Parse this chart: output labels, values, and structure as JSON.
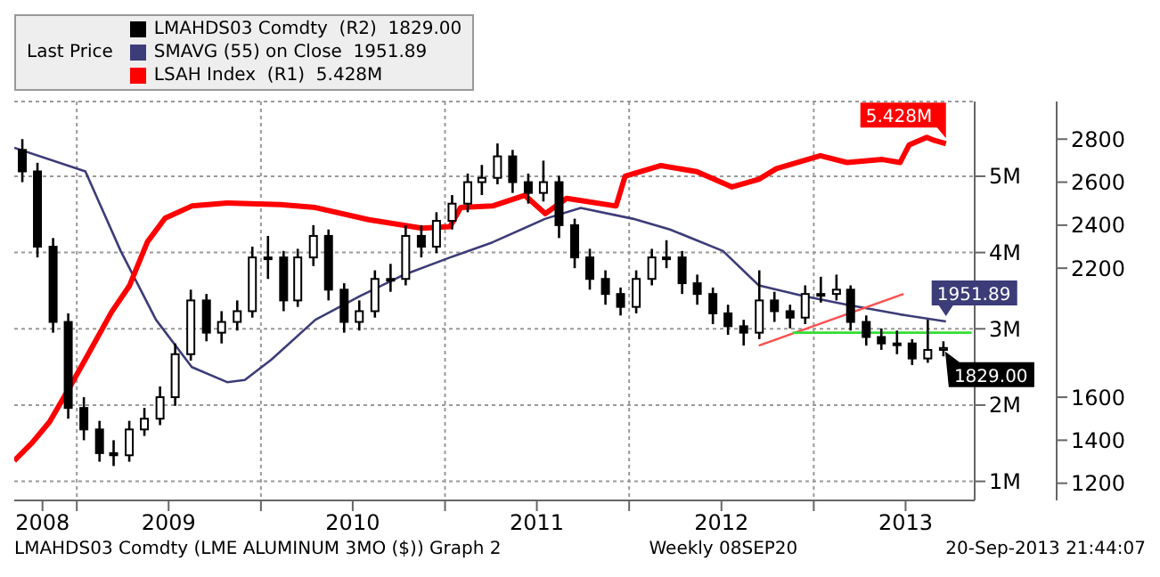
{
  "chart_data": {
    "type": "candlestick",
    "legend_title": "Last Price",
    "legend": "top left",
    "grid": true,
    "marker": "none",
    "line_style": "solid",
    "xlim": [
      "2008-08-30",
      "2013-11-16"
    ],
    "xticks": [
      {
        "value": "2008-10-25",
        "label": "2008"
      },
      {
        "value": "2009-01-01",
        "label": null
      },
      {
        "value": "2009-07-02",
        "label": "2009"
      },
      {
        "value": "2010-01-01",
        "label": null
      },
      {
        "value": "2010-07-02",
        "label": "2010"
      },
      {
        "value": "2011-01-01",
        "label": null
      },
      {
        "value": "2011-07-02",
        "label": "2011"
      },
      {
        "value": "2012-01-01",
        "label": null
      },
      {
        "value": "2012-07-02",
        "label": "2012"
      },
      {
        "value": "2013-01-01",
        "label": null
      },
      {
        "value": "2013-07-02",
        "label": "2013"
      }
    ],
    "ylim": [
      750000,
      5980000
    ],
    "yticks": [
      {
        "value": 1000000,
        "label": "1M"
      },
      {
        "value": 2000000,
        "label": "2M"
      },
      {
        "value": 3000000,
        "label": "3M"
      },
      {
        "value": 4000000,
        "label": "4M"
      },
      {
        "value": 5000000,
        "label": "5M"
      }
    ],
    "y2lim": [
      1120,
      2975
    ],
    "y2ticks": [
      1200,
      1400,
      1600,
      2200,
      2400,
      2600,
      2800
    ],
    "series": [
      {
        "name": "LMAHDS03 Comdty  (R2)",
        "axis": "y2",
        "color": "#000000",
        "x": [
          "2008-09-15",
          "2008-10-15",
          "2008-11-15",
          "2008-12-15",
          "2009-01-15",
          "2009-02-15",
          "2009-03-15",
          "2009-04-15",
          "2009-05-15",
          "2009-06-15",
          "2009-07-15",
          "2009-08-15",
          "2009-09-15",
          "2009-10-15",
          "2009-11-15",
          "2009-12-15",
          "2010-01-15",
          "2010-02-15",
          "2010-03-15",
          "2010-04-15",
          "2010-05-15",
          "2010-06-15",
          "2010-07-15",
          "2010-08-15",
          "2010-09-15",
          "2010-10-15",
          "2010-11-15",
          "2010-12-15",
          "2011-01-15",
          "2011-02-15",
          "2011-03-15",
          "2011-04-15",
          "2011-05-15",
          "2011-06-15",
          "2011-07-15",
          "2011-08-15",
          "2011-09-15",
          "2011-10-15",
          "2011-11-15",
          "2011-12-15",
          "2012-01-15",
          "2012-02-15",
          "2012-03-15",
          "2012-04-15",
          "2012-05-15",
          "2012-06-15",
          "2012-07-15",
          "2012-08-15",
          "2012-09-15",
          "2012-10-15",
          "2012-11-15",
          "2012-12-15",
          "2013-01-15",
          "2013-02-15",
          "2013-03-15",
          "2013-04-15",
          "2013-05-15",
          "2013-06-15",
          "2013-07-15",
          "2013-08-15",
          "2013-09-15"
        ],
        "ohlc": [
          [
            2750,
            2800,
            2600,
            2650
          ],
          [
            2650,
            2690,
            2250,
            2300
          ],
          [
            2300,
            2340,
            1900,
            1950
          ],
          [
            1950,
            1990,
            1500,
            1550
          ],
          [
            1550,
            1600,
            1400,
            1450
          ],
          [
            1450,
            1490,
            1300,
            1340
          ],
          [
            1340,
            1400,
            1280,
            1330
          ],
          [
            1330,
            1490,
            1300,
            1450
          ],
          [
            1450,
            1550,
            1420,
            1500
          ],
          [
            1500,
            1650,
            1470,
            1600
          ],
          [
            1600,
            1850,
            1560,
            1800
          ],
          [
            1800,
            2100,
            1770,
            2050
          ],
          [
            2050,
            2080,
            1860,
            1900
          ],
          [
            1900,
            2000,
            1850,
            1950
          ],
          [
            1950,
            2050,
            1910,
            2000
          ],
          [
            2000,
            2300,
            1970,
            2250
          ],
          [
            2250,
            2350,
            2150,
            2250
          ],
          [
            2250,
            2280,
            2000,
            2050
          ],
          [
            2050,
            2290,
            2020,
            2250
          ],
          [
            2250,
            2400,
            2210,
            2350
          ],
          [
            2350,
            2380,
            2050,
            2100
          ],
          [
            2100,
            2130,
            1900,
            1950
          ],
          [
            1950,
            2050,
            1910,
            2000
          ],
          [
            2000,
            2190,
            1970,
            2150
          ],
          [
            2150,
            2220,
            2090,
            2150
          ],
          [
            2150,
            2400,
            2120,
            2350
          ],
          [
            2350,
            2400,
            2250,
            2300
          ],
          [
            2300,
            2460,
            2270,
            2420
          ],
          [
            2420,
            2540,
            2380,
            2500
          ],
          [
            2500,
            2640,
            2460,
            2600
          ],
          [
            2600,
            2680,
            2540,
            2620
          ],
          [
            2620,
            2780,
            2590,
            2720
          ],
          [
            2720,
            2750,
            2550,
            2600
          ],
          [
            2600,
            2640,
            2500,
            2550
          ],
          [
            2550,
            2700,
            2510,
            2600
          ],
          [
            2600,
            2630,
            2340,
            2400
          ],
          [
            2400,
            2430,
            2200,
            2250
          ],
          [
            2250,
            2290,
            2100,
            2150
          ],
          [
            2150,
            2190,
            2030,
            2080
          ],
          [
            2080,
            2110,
            1980,
            2020
          ],
          [
            2020,
            2190,
            1990,
            2150
          ],
          [
            2150,
            2290,
            2120,
            2250
          ],
          [
            2250,
            2330,
            2200,
            2250
          ],
          [
            2250,
            2280,
            2080,
            2130
          ],
          [
            2130,
            2170,
            2030,
            2080
          ],
          [
            2080,
            2110,
            1940,
            1990
          ],
          [
            1990,
            2030,
            1890,
            1930
          ],
          [
            1930,
            1960,
            1840,
            1900
          ],
          [
            1900,
            2190,
            1870,
            2050
          ],
          [
            2050,
            2090,
            1950,
            2000
          ],
          [
            2000,
            2030,
            1920,
            1970
          ],
          [
            1970,
            2120,
            1940,
            2080
          ],
          [
            2080,
            2160,
            2040,
            2080
          ],
          [
            2080,
            2170,
            2050,
            2100
          ],
          [
            2100,
            2120,
            1910,
            1950
          ],
          [
            1950,
            1980,
            1840,
            1880
          ],
          [
            1880,
            1920,
            1820,
            1850
          ],
          [
            1850,
            1910,
            1800,
            1850
          ],
          [
            1850,
            1870,
            1750,
            1780
          ],
          [
            1780,
            1960,
            1760,
            1820
          ],
          [
            1820,
            1860,
            1790,
            1829
          ]
        ],
        "value_labels": [
          null,
          null,
          null,
          null,
          null,
          null,
          null,
          null,
          null,
          null,
          null,
          null,
          null,
          null,
          null,
          null,
          null,
          null,
          null,
          null,
          null,
          null,
          null,
          null,
          null,
          null,
          null,
          null,
          null,
          null,
          null,
          null,
          null,
          null,
          null,
          null,
          null,
          null,
          null,
          null,
          null,
          null,
          null,
          null,
          null,
          null,
          null,
          null,
          null,
          null,
          null,
          null,
          null,
          null,
          null,
          null,
          null,
          null,
          null,
          null,
          "1829.00"
        ]
      },
      {
        "name": "SMAVG (55) on Close",
        "type": "line",
        "axis": "y2",
        "color": "#3c3c78",
        "x": [
          "2008-08-30",
          "2009-01-18",
          "2009-03-29",
          "2009-06-07",
          "2009-08-17",
          "2009-10-26",
          "2009-11-30",
          "2010-01-22",
          "2010-04-19",
          "2010-07-16",
          "2010-10-12",
          "2011-01-11",
          "2011-04-05",
          "2011-07-19",
          "2011-09-27",
          "2012-01-08",
          "2012-03-22",
          "2012-07-05",
          "2012-09-14",
          "2012-12-12",
          "2013-03-08",
          "2013-06-21",
          "2013-09-20"
        ],
        "values": [
          2760,
          2650,
          2280,
          1960,
          1740,
          1670,
          1680,
          1775,
          1960,
          2070,
          2170,
          2250,
          2320,
          2430,
          2480,
          2430,
          2380,
          2280,
          2120,
          2070,
          2030,
          1985,
          1951.89
        ],
        "value_labels": [
          null,
          null,
          null,
          null,
          null,
          null,
          null,
          null,
          null,
          null,
          null,
          null,
          null,
          null,
          null,
          null,
          null,
          null,
          null,
          null,
          null,
          null,
          "1951.89"
        ]
      },
      {
        "name": "LSAH Index  (R1)",
        "type": "line",
        "color": "#ff0000",
        "x": [
          "2008-08-30",
          "2008-10-05",
          "2008-11-08",
          "2008-12-14",
          "2009-01-18",
          "2009-03-11",
          "2009-04-15",
          "2009-05-21",
          "2009-06-25",
          "2009-08-17",
          "2009-10-26",
          "2010-02-08",
          "2010-04-19",
          "2010-08-03",
          "2010-11-16",
          "2011-01-11",
          "2011-02-01",
          "2011-04-05",
          "2011-06-08",
          "2011-07-19",
          "2011-08-30",
          "2011-12-06",
          "2011-12-24",
          "2012-03-04",
          "2012-05-14",
          "2012-07-23",
          "2012-09-14",
          "2012-10-19",
          "2013-01-14",
          "2013-03-08",
          "2013-05-17",
          "2013-06-21",
          "2013-07-09",
          "2013-08-13",
          "2013-08-28",
          "2013-09-20"
        ],
        "values": [
          1270000,
          1510000,
          1780000,
          2190000,
          2600000,
          3220000,
          3560000,
          4140000,
          4450000,
          4610000,
          4650000,
          4630000,
          4590000,
          4430000,
          4320000,
          4340000,
          4590000,
          4610000,
          4750000,
          4510000,
          4710000,
          4610000,
          5000000,
          5140000,
          5060000,
          4860000,
          4960000,
          5100000,
          5270000,
          5180000,
          5220000,
          5180000,
          5410000,
          5510000,
          5470000,
          5428000
        ],
        "value_labels": [
          null,
          null,
          null,
          null,
          null,
          null,
          null,
          null,
          null,
          null,
          null,
          null,
          null,
          null,
          null,
          null,
          null,
          null,
          null,
          null,
          null,
          null,
          null,
          null,
          null,
          null,
          null,
          null,
          null,
          null,
          null,
          null,
          null,
          null,
          null,
          "5.428M"
        ]
      },
      {
        "type": "line",
        "axis": "y2",
        "color": "#ff5050",
        "x": [
          "2012-09-14",
          "2013-06-28"
        ],
        "values": [
          1840,
          2080
        ]
      },
      {
        "type": "line",
        "axis": "y2",
        "color": "#33dd33",
        "x": [
          "2012-11-20",
          "2013-11-10"
        ],
        "values": [
          1900,
          1900
        ]
      }
    ],
    "annotations": [
      "LMAHDS03 Comdty (LME ALUMINUM  3MO ($)) Graph 2",
      "Weekly 08SEP20",
      "20-Sep-2013 21:44:07"
    ]
  }
}
